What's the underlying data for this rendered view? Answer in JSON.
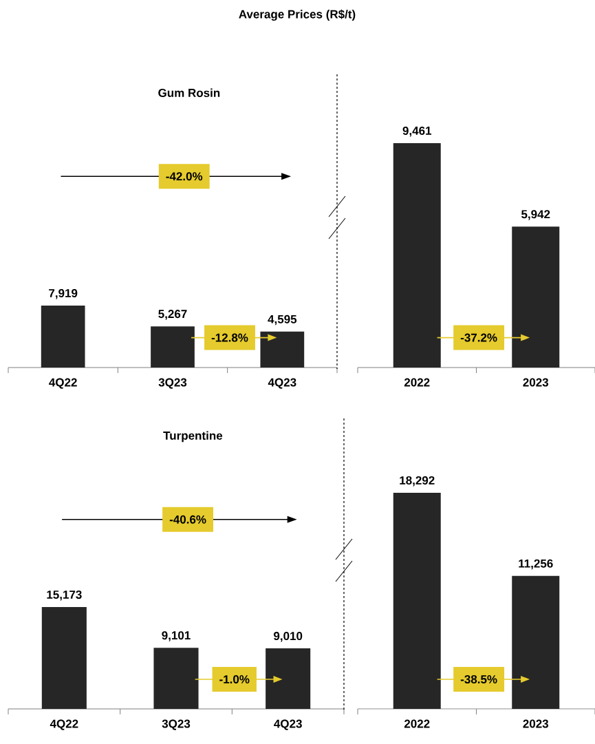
{
  "chart_data": [
    {
      "type": "bar",
      "title": "Average Prices (R$/t)",
      "subtitle": "Gum Rosin",
      "categories": [
        "4Q22",
        "3Q23",
        "4Q23"
      ],
      "values": [
        7919,
        5267,
        4595
      ],
      "value_labels": [
        "7,919",
        "5,267",
        "4,595"
      ],
      "color": "#262626",
      "tick_labels": "x",
      "annotations": [
        "-42.0%",
        "-12.8%"
      ]
    },
    {
      "type": "bar",
      "categories": [
        "2022",
        "2023"
      ],
      "values": [
        9461,
        5942
      ],
      "value_labels": [
        "9,461",
        "5,942"
      ],
      "color": "#262626",
      "tick_labels": "x",
      "annotations": [
        "-37.2%"
      ]
    },
    {
      "type": "bar",
      "subtitle": "Turpentine",
      "categories": [
        "4Q22",
        "3Q23",
        "4Q23"
      ],
      "values": [
        15173,
        9101,
        9010
      ],
      "value_labels": [
        "15,173",
        "9,101",
        "9,010"
      ],
      "color": "#262626",
      "tick_labels": "x",
      "annotations": [
        "-40.6%",
        "-1.0%"
      ]
    },
    {
      "type": "bar",
      "categories": [
        "2022",
        "2023"
      ],
      "values": [
        18292,
        11256
      ],
      "value_labels": [
        "18,292",
        "11,256"
      ],
      "color": "#262626",
      "tick_labels": "x",
      "annotations": [
        "-38.5%"
      ]
    }
  ]
}
